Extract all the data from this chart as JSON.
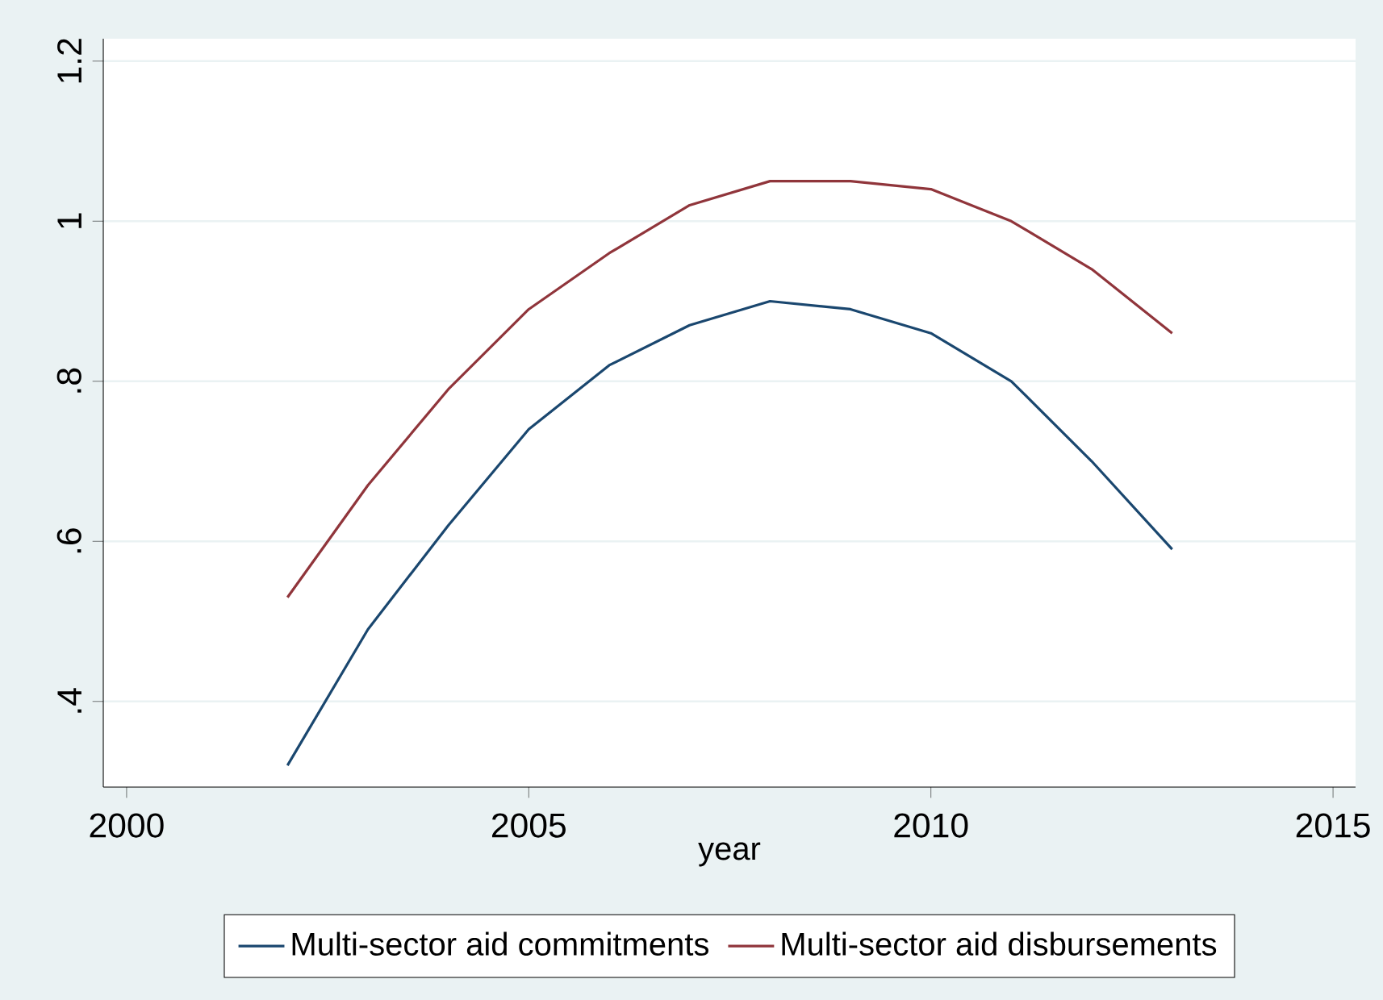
{
  "chart_data": {
    "type": "line",
    "xlabel": "year",
    "x": [
      2002,
      2003,
      2004,
      2005,
      2006,
      2007,
      2008,
      2009,
      2010,
      2011,
      2012,
      2013
    ],
    "series": [
      {
        "name": "Multi-sector aid commitments",
        "color": "#1a476f",
        "values": [
          0.32,
          0.49,
          0.62,
          0.74,
          0.82,
          0.87,
          0.9,
          0.89,
          0.86,
          0.8,
          0.7,
          0.59
        ]
      },
      {
        "name": "Multi-sector aid disbursements",
        "color": "#90353b",
        "values": [
          0.53,
          0.67,
          0.79,
          0.89,
          0.96,
          1.02,
          1.05,
          1.05,
          1.04,
          1.0,
          0.94,
          0.86
        ]
      }
    ],
    "xlim": [
      1999.71,
      2015.28
    ],
    "xticks": [
      2000,
      2005,
      2010,
      2015
    ],
    "ylim": [
      0.293,
      1.228
    ],
    "yticks": [
      {
        "value": 0.4,
        "label": ".4"
      },
      {
        "value": 0.6,
        "label": ".6"
      },
      {
        "value": 0.8,
        "label": ".8"
      },
      1,
      1.2
    ],
    "grid": "y",
    "legend": "bottom",
    "line_style": "solid",
    "marker": "none"
  }
}
